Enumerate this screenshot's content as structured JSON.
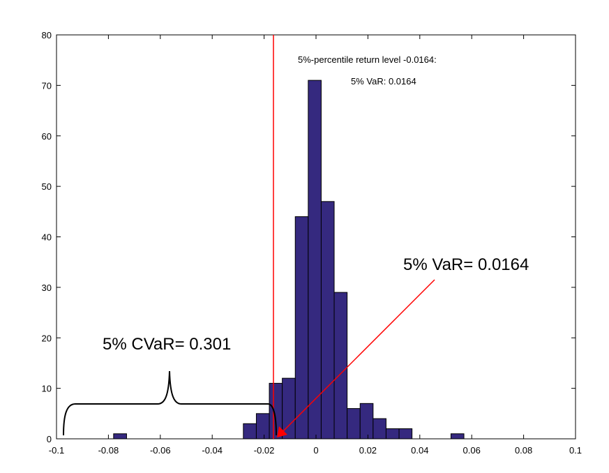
{
  "chart_data": {
    "type": "bar",
    "subtype": "histogram",
    "xlim": [
      -0.1,
      0.1
    ],
    "ylim": [
      0,
      80
    ],
    "xticks": [
      "-0.1",
      "-0.08",
      "-0.06",
      "-0.04",
      "-0.02",
      "0",
      "0.02",
      "0.04",
      "0.06",
      "0.08",
      "0.1"
    ],
    "yticks": [
      "0",
      "10",
      "20",
      "30",
      "40",
      "50",
      "60",
      "70",
      "80"
    ],
    "bin_width": 0.005,
    "bins": [
      {
        "x": -0.0755,
        "count": 1
      },
      {
        "x": -0.0255,
        "count": 3
      },
      {
        "x": -0.0205,
        "count": 5
      },
      {
        "x": -0.0155,
        "count": 11
      },
      {
        "x": -0.0105,
        "count": 12
      },
      {
        "x": -0.0055,
        "count": 44
      },
      {
        "x": -0.0005,
        "count": 71
      },
      {
        "x": 0.0045,
        "count": 47
      },
      {
        "x": 0.0095,
        "count": 29
      },
      {
        "x": 0.0145,
        "count": 6
      },
      {
        "x": 0.0195,
        "count": 7
      },
      {
        "x": 0.0245,
        "count": 4
      },
      {
        "x": 0.0295,
        "count": 2
      },
      {
        "x": 0.0345,
        "count": 2
      },
      {
        "x": 0.0545,
        "count": 1
      }
    ],
    "bar_color": "#35297f",
    "var_line_x": -0.0164,
    "var_line_color": "#ff0000",
    "title": "",
    "xlabel": "",
    "ylabel": "",
    "grid": false
  },
  "annotations": {
    "percentile_text": "5%-percentile return level -0.0164:",
    "var_small_text": "5% VaR: 0.0164",
    "var_big_text": "5% VaR= 0.0164",
    "cvar_text": "5% CVaR= 0.301"
  }
}
